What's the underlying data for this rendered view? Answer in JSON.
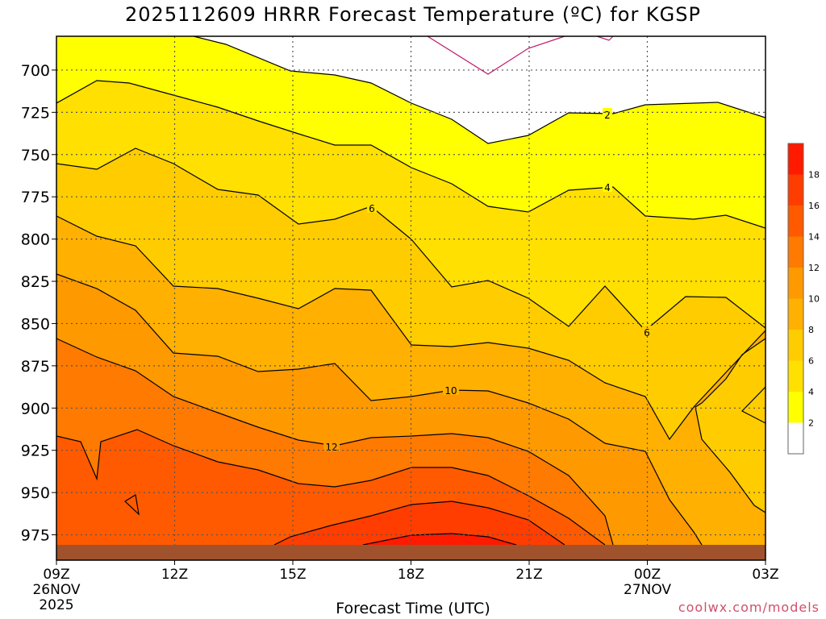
{
  "title": "2025112609 HRRR Forecast Temperature (ºC) for KGSP",
  "watermark": "coolwx.com/models",
  "chart_data": {
    "type": "contour",
    "xlabel": "Forecast Time (UTC)",
    "ylabel": "",
    "x_ticks": [
      {
        "label": "09Z",
        "sub": [
          "26NOV",
          "2025"
        ],
        "hour": 9
      },
      {
        "label": "12Z",
        "sub": [],
        "hour": 12
      },
      {
        "label": "15Z",
        "sub": [],
        "hour": 15
      },
      {
        "label": "18Z",
        "sub": [],
        "hour": 18
      },
      {
        "label": "21Z",
        "sub": [],
        "hour": 21
      },
      {
        "label": "00Z",
        "sub": [
          "27NOV"
        ],
        "hour": 24
      },
      {
        "label": "03Z",
        "sub": [],
        "hour": 27
      }
    ],
    "xlim": [
      9,
      27
    ],
    "y_ticks": [
      700,
      725,
      750,
      775,
      800,
      825,
      850,
      875,
      900,
      925,
      950,
      975
    ],
    "ylim": [
      680,
      990
    ],
    "surface_pressure": 975,
    "contour_levels": [
      2,
      4,
      6,
      8,
      10,
      12,
      14,
      16,
      18
    ],
    "contour_labels": [
      "2",
      "4",
      "6",
      "6",
      "10",
      "12"
    ],
    "colorbar": {
      "ticks": [
        "2",
        "4",
        "6",
        "8",
        "10",
        "12",
        "14",
        "16",
        "18"
      ],
      "colors": [
        "#ffffff",
        "#ffff00",
        "#ffe000",
        "#ffcc00",
        "#ffb000",
        "#ff9900",
        "#ff7a00",
        "#ff5a00",
        "#ff3d00",
        "#ff1a00"
      ]
    }
  }
}
